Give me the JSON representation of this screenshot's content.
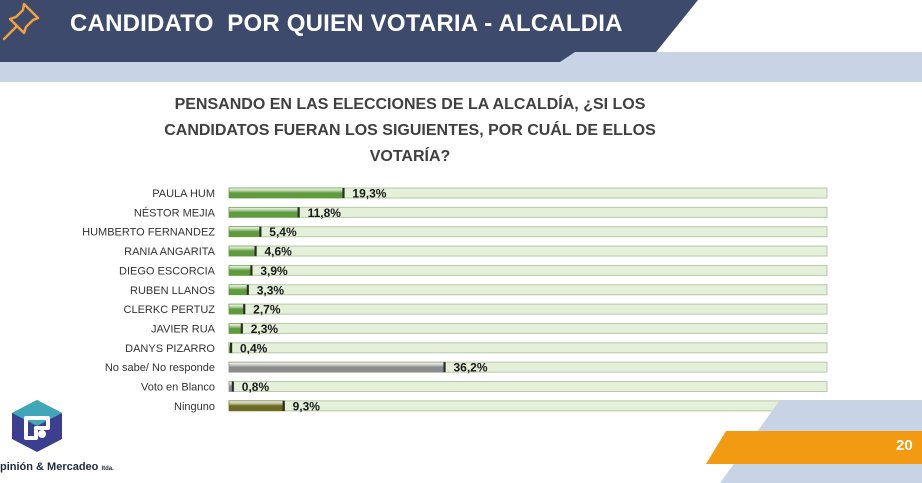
{
  "header": {
    "title": "CANDIDATO  POR QUIEN VOTARIA - ALCALDIA"
  },
  "question": {
    "line1": "PENSANDO EN LAS ELECCIONES DE LA ALCALDÍA, ¿SI LOS",
    "line2": "CANDIDATOS FUERAN LOS SIGUIENTES, POR CUÁL DE ELLOS",
    "line3": "VOTARÍA?"
  },
  "footer": {
    "page_number": "20",
    "logo_text": "pinión & Mercadeo",
    "logo_suffix": "ltda."
  },
  "colors": {
    "header_navy": "#3d4a6b",
    "header_light": "#c9d3e6",
    "bar_green": "#5f9a3c",
    "bar_gray": "#8c8c8c",
    "bar_olive": "#6b6a22",
    "track_fill": "#e4f0da",
    "track_border": "#b7c9a6",
    "accent_orange": "#f29a12"
  },
  "chart_data": {
    "type": "bar",
    "orientation": "horizontal",
    "categories": [
      "PAULA HUM",
      "NÉSTOR MEJIA",
      "HUMBERTO FERNANDEZ",
      "RANIA ANGARITA",
      "DIEGO ESCORCIA",
      "RUBEN LLANOS",
      "CLERKC PERTUZ",
      "JAVIER RUA",
      "DANYS PIZARRO",
      "No sabe/ No responde",
      "Voto en Blanco",
      "Ninguno"
    ],
    "values": [
      19.3,
      11.8,
      5.4,
      4.6,
      3.9,
      3.3,
      2.7,
      2.3,
      0.4,
      36.2,
      0.8,
      9.3
    ],
    "labels": [
      "19,3%",
      "11,8%",
      "5,4%",
      "4,6%",
      "3,9%",
      "3,3%",
      "2,7%",
      "2,3%",
      "0,4%",
      "36,2%",
      "0,8%",
      "9,3%"
    ],
    "bar_colors": [
      "green",
      "green",
      "green",
      "green",
      "green",
      "green",
      "green",
      "green",
      "green",
      "gray",
      "gray",
      "olive"
    ],
    "xlim": [
      0,
      100
    ],
    "grid": false,
    "legend": "none"
  }
}
